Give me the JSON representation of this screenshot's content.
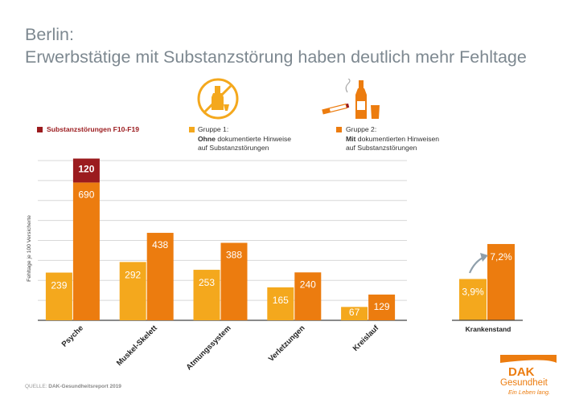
{
  "header": {
    "title_line1": "Berlin:",
    "title_line2": "Erwerbstätige mit Substanzstörung haben deutlich mehr Fehltage"
  },
  "legend": {
    "substance": "Substanzstörungen F10-F19",
    "group1_l1": "Gruppe 1:",
    "group1_l2_bold": "Ohne",
    "group1_l2_rest": " dokumentierte Hinweise",
    "group1_l3": "auf Substanzstörungen",
    "group2_l1": "Gruppe 2:",
    "group2_l2_bold": "Mit",
    "group2_l2_rest": " dokumentierten Hinweisen",
    "group2_l3": "auf Substanzstörungen"
  },
  "icons": {
    "group1": "no-alcohol-icon",
    "group2": "cigarette-alcohol-icon",
    "trend": "trend-arrow-icon"
  },
  "colors": {
    "group1": "#f4a81d",
    "group2": "#ec7c0f",
    "substance": "#9b1b1e",
    "grid": "#d8d8d8",
    "title": "#7d8890"
  },
  "chart_data": [
    {
      "type": "bar",
      "ylabel": "Fehltage je 100 Versicherte",
      "categories": [
        "Psyche",
        "Muskel-Skelett",
        "Atmungssystem",
        "Verletzungen",
        "Kreislauf"
      ],
      "series": [
        {
          "name": "Gruppe 1",
          "values": [
            239,
            292,
            253,
            165,
            67
          ]
        },
        {
          "name": "Gruppe 2",
          "values": [
            690,
            438,
            388,
            240,
            129
          ]
        },
        {
          "name": "Substanzstörungen F10-F19",
          "values": [
            120,
            0,
            0,
            0,
            0
          ]
        }
      ],
      "stacked_series": "Substanzstörungen F10-F19 stacked on Gruppe 2",
      "ylim": [
        0,
        800
      ],
      "grid": true,
      "legend_position": "top"
    },
    {
      "type": "bar",
      "categories": [
        "Krankenstand"
      ],
      "series": [
        {
          "name": "Gruppe 1",
          "values": [
            3.9
          ],
          "labels": [
            "3,9%"
          ]
        },
        {
          "name": "Gruppe 2",
          "values": [
            7.2
          ],
          "labels": [
            "7,2%"
          ]
        }
      ],
      "grid": false
    }
  ],
  "footer": {
    "source_prefix": "QUELLE: ",
    "source_name": "DAK-Gesundheitsreport 2019"
  },
  "logo": {
    "brand": "DAK",
    "name": "Gesundheit",
    "slogan": "Ein Leben lang."
  }
}
